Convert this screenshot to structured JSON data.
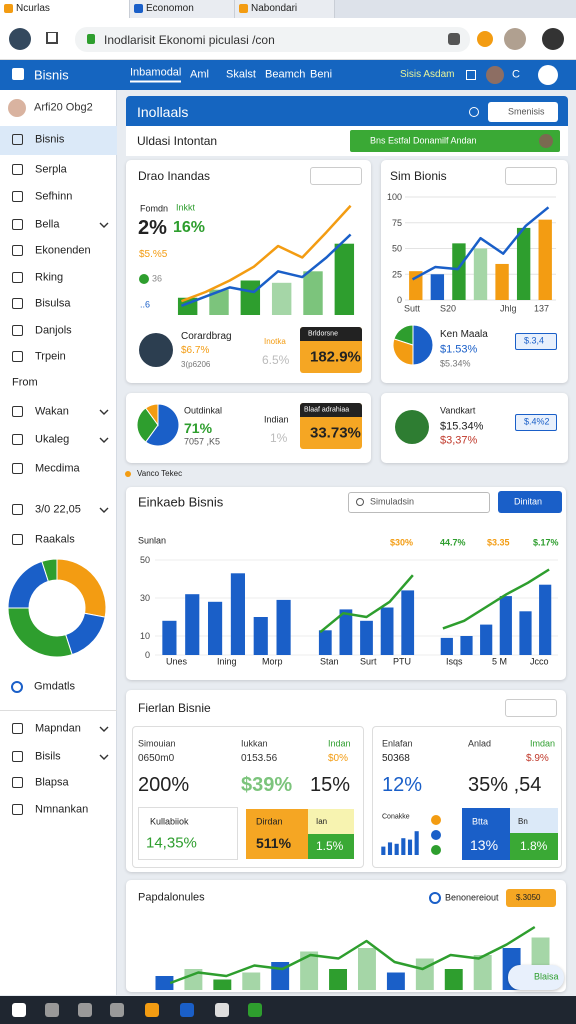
{
  "browser": {
    "tabs": [
      "Ncurlas",
      "Economon",
      "Nabondari"
    ],
    "address": "Inodlarisit Ekonomi piculasi /con"
  },
  "app": {
    "brand": "Bisnis",
    "nav": [
      "Inbamodal",
      "Aml",
      "Skalst",
      "Beamch",
      "Beni"
    ],
    "account": "Sisis Asdam",
    "account_initial": "C"
  },
  "sidebar": {
    "user": "Arfi20 Obg2",
    "items": [
      "Bisnis",
      "Serpla",
      "Sefhinn",
      "Bella",
      "Ekonenden",
      "Rking",
      "Bisulsa",
      "Danjols",
      "Trpein"
    ],
    "section": "From",
    "items2": [
      "Wakan",
      "Ukaleg",
      "Mecdima"
    ],
    "date": "3/0 22,05",
    "reports": "Raakals",
    "donut": {
      "values": [
        28,
        17,
        30,
        20,
        5
      ],
      "colors": [
        "#f39c12",
        "#1a5fc8",
        "#2e9e2e",
        "#1a5fc8",
        "#2e9e2e"
      ]
    },
    "footer": "Gmdatls",
    "items3": [
      "Mapndan",
      "Bisils",
      "Blapsa",
      "Nmnankan"
    ]
  },
  "header": {
    "title": "Inollaals",
    "search": "Smenisis",
    "subtitle": "Uldasi Intontan",
    "button": "Bns Estfal Donamilf Andan"
  },
  "drao": {
    "title": "Drao Inandas",
    "labels": [
      "Fomdn",
      "Inkkt"
    ],
    "values": [
      "2%",
      "16%"
    ],
    "small": [
      "$5.%5",
      "36",
      "..6"
    ],
    "chart": {
      "ylim": [
        0,
        100
      ],
      "bars": [
        15,
        22,
        30,
        28,
        38,
        62
      ],
      "bar_colors": [
        "#2e9e2e",
        "#7cc47c",
        "#2e9e2e",
        "#a5d6a7",
        "#7cc47c",
        "#2e9e2e"
      ],
      "lines": [
        {
          "values": [
            12,
            20,
            30,
            42,
            60,
            50,
            72,
            95
          ],
          "color": "#f39c12"
        },
        {
          "values": [
            8,
            16,
            24,
            20,
            38,
            33,
            50,
            70
          ],
          "color": "#1a5fc8"
        }
      ]
    },
    "person": {
      "name": "Corardbrag",
      "line1": "$6.7%",
      "line2": "3(p6206"
    },
    "mid": {
      "label": "Inotka",
      "value": "6.5%"
    },
    "badge": {
      "label": "Brldorsne",
      "value": "182.9%"
    }
  },
  "sim": {
    "title": "Sim Bionis",
    "chart": {
      "ylim": [
        0,
        100
      ],
      "yticks": [
        0,
        25,
        50,
        75,
        100
      ],
      "bars": [
        28,
        25,
        55,
        50,
        35,
        70,
        78
      ],
      "bar_colors": [
        "#f39c12",
        "#1a5fc8",
        "#2e9e2e",
        "#a5d6a7",
        "#f39c12",
        "#2e9e2e",
        "#f39c12"
      ],
      "lines": [
        {
          "values": [
            20,
            32,
            30,
            60,
            45,
            72,
            90
          ],
          "color": "#1a5fc8"
        }
      ],
      "x_labels": [
        "Sutt",
        "S20",
        "Jhlg",
        "137"
      ]
    },
    "pie": {
      "values": [
        50,
        30,
        20
      ],
      "colors": [
        "#1a5fc8",
        "#f39c12",
        "#2e9e2e"
      ]
    },
    "name": "Ken Maala",
    "line1": "$1.53%",
    "line2": "$5.34%",
    "button": "$.3,4"
  },
  "cardc": {
    "pie": {
      "values": [
        60,
        30,
        10
      ],
      "colors": [
        "#1a5fc8",
        "#2e9e2e",
        "#f39c12"
      ]
    },
    "label": "Outdinkal",
    "value": "71%",
    "sub": "7057 ,K5",
    "mid_label": "Indian",
    "mid_value": "1%",
    "badge": {
      "label": "Blaaf adrahiaa",
      "value": "33.73%"
    }
  },
  "cardd": {
    "name": "Vandkart",
    "line1": "$15.34%",
    "line2": "$3,37%",
    "button": "$.4%2"
  },
  "note": "Vanco Tekec",
  "einkaeb": {
    "title": "Einkaeb Bisnis",
    "search": "Simuladsin",
    "button": "Dinitan",
    "axis_label": "Sunlan",
    "ylim": [
      0,
      50
    ],
    "yticks": [
      0,
      10,
      30,
      50
    ],
    "top_labels": [
      "$30%",
      "44.7%",
      "$3.35",
      "$.17%"
    ],
    "x_labels": [
      "Unes",
      "Ining",
      "Morp",
      "Stan",
      "Surt",
      "PTU",
      "Isqs",
      "5 M",
      "Jcco"
    ],
    "groups": [
      {
        "bars": [
          18,
          32,
          28,
          43,
          20,
          29
        ],
        "bar_colors": [
          "#1a5fc8"
        ]
      },
      {
        "bars": [
          13,
          24,
          18,
          25,
          34
        ],
        "bar_colors": [
          "#1a5fc8"
        ],
        "lines": [
          {
            "values": [
              12,
              22,
              20,
              28,
              42
            ],
            "color": "#2e9e2e"
          }
        ]
      },
      {
        "bars": [
          9,
          10,
          16,
          31,
          23,
          37
        ],
        "bar_colors": [
          "#1a5fc8"
        ],
        "lines": [
          {
            "values": [
              14,
              18,
              25,
              32,
              38,
              45
            ],
            "color": "#2e9e2e"
          }
        ]
      }
    ]
  },
  "fierlan": {
    "title": "Fierlan Bisnie",
    "left": {
      "labels": [
        "Simouian",
        "Iukkan",
        "Indan"
      ],
      "subs": [
        "0650m0",
        "0153.56",
        "$0%"
      ],
      "bigs": [
        "200%",
        "$39%",
        "15%"
      ],
      "box1": [
        "Kullabiiok",
        "14,35%"
      ],
      "box2": [
        "Dirdan",
        "511%"
      ],
      "box3": [
        "Ian",
        "1.5%"
      ]
    },
    "right": {
      "labels": [
        "Enlafan",
        "Anlad",
        "Imdan"
      ],
      "subs": [
        "50368",
        "$.9%"
      ],
      "bigs": [
        "12%",
        "35% ,54"
      ],
      "mini_label": "Conakke",
      "mini": {
        "ylim": [
          0,
          100
        ],
        "bars": [
          30,
          45,
          40,
          60,
          55,
          85
        ],
        "bar_colors": [
          "#1a5fc8"
        ]
      },
      "box1": [
        "Btta",
        "13%"
      ],
      "box2": [
        "Bn",
        "1.8%"
      ]
    }
  },
  "papd": {
    "title": "Papdalonules",
    "link": "Benonereiout",
    "badge": "$.3050",
    "fab": "Blaisa",
    "chart": {
      "ylim": [
        0,
        100
      ],
      "bars": [
        20,
        30,
        15,
        25,
        40,
        55,
        30,
        60,
        25,
        45,
        30,
        50,
        60,
        75
      ],
      "bar_colors": [
        "#1a5fc8",
        "#a5d6a7",
        "#2e9e2e",
        "#a5d6a7"
      ],
      "lines": [
        {
          "values": [
            10,
            25,
            20,
            35,
            30,
            50,
            45,
            70,
            40,
            30,
            50,
            45,
            65,
            90
          ],
          "color": "#2e9e2e"
        }
      ]
    }
  }
}
